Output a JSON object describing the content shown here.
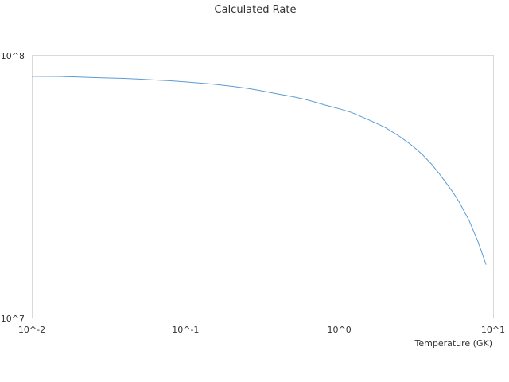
{
  "chart_data": {
    "type": "line",
    "title": "Calculated Rate",
    "xlabel": "Temperature (GK)",
    "ylabel": "",
    "x_scale": "log",
    "y_scale": "log",
    "xlim": [
      0.01,
      10
    ],
    "ylim": [
      10000000,
      100000000
    ],
    "x_tick_values": [
      0.01,
      0.1,
      1,
      10
    ],
    "x_tick_labels": [
      "10^-2",
      "10^-1",
      "10^0",
      "10^1"
    ],
    "y_tick_values": [
      10000000,
      100000000
    ],
    "y_tick_labels": [
      "10^7",
      "10^8"
    ],
    "grid": false,
    "legend": "none",
    "series": [
      {
        "color": "#5b9bd5",
        "x": [
          0.01,
          0.015,
          0.02,
          0.03,
          0.04,
          0.05,
          0.06,
          0.08,
          0.1,
          0.12,
          0.15,
          0.2,
          0.25,
          0.3,
          0.4,
          0.5,
          0.6,
          0.7,
          0.8,
          1.0,
          1.2,
          1.5,
          1.8,
          2.0,
          2.5,
          3.0,
          3.5,
          4.0,
          4.5,
          5.0,
          5.5,
          6.0,
          7.0,
          8.0,
          9.0
        ],
        "y": [
          83500000,
          83400000,
          83000000,
          82300000,
          82000000,
          81500000,
          81000000,
          80300000,
          79500000,
          78800000,
          78000000,
          76500000,
          75200000,
          73800000,
          71500000,
          69800000,
          68200000,
          66500000,
          65000000,
          62800000,
          60800000,
          57500000,
          54800000,
          53200000,
          49000000,
          45300000,
          41800000,
          38500000,
          35300000,
          32500000,
          30100000,
          27800000,
          23500000,
          19500000,
          16000000
        ]
      }
    ]
  }
}
